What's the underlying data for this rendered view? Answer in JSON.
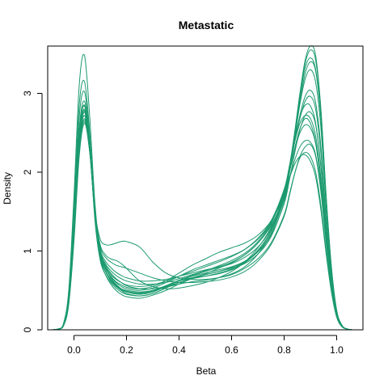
{
  "chart_data": {
    "type": "line",
    "title": "Metastatic",
    "xlabel": "Beta",
    "ylabel": "Density",
    "xlim": [
      -0.1,
      1.1
    ],
    "ylim": [
      0,
      3.6
    ],
    "xticks": [
      {
        "value": 0.0,
        "label": "0.0"
      },
      {
        "value": 0.2,
        "label": "0.2"
      },
      {
        "value": 0.4,
        "label": "0.4"
      },
      {
        "value": 0.6,
        "label": "0.6"
      },
      {
        "value": 0.8,
        "label": "0.8"
      },
      {
        "value": 1.0,
        "label": "1.0"
      }
    ],
    "yticks": [
      {
        "value": 0,
        "label": "0"
      },
      {
        "value": 1,
        "label": "1"
      },
      {
        "value": 2,
        "label": "2"
      },
      {
        "value": 3,
        "label": "3"
      }
    ],
    "line_color": "#1b9a6e",
    "baseline_color": "#b0b0b0",
    "grid": false,
    "x": [
      -0.08,
      -0.06,
      -0.04,
      -0.02,
      0.0,
      0.02,
      0.04,
      0.06,
      0.08,
      0.1,
      0.12,
      0.14,
      0.16,
      0.18,
      0.2,
      0.25,
      0.3,
      0.35,
      0.4,
      0.45,
      0.5,
      0.55,
      0.6,
      0.65,
      0.7,
      0.75,
      0.8,
      0.82,
      0.84,
      0.86,
      0.88,
      0.9,
      0.92,
      0.94,
      0.96,
      0.98,
      1.0,
      1.02,
      1.04,
      1.06
    ],
    "series": [
      {
        "values": [
          0.0,
          0.01,
          0.08,
          0.5,
          1.7,
          3.1,
          3.48,
          2.7,
          1.6,
          1.0,
          0.8,
          0.66,
          0.58,
          0.52,
          0.48,
          0.45,
          0.48,
          0.55,
          0.62,
          0.66,
          0.68,
          0.71,
          0.76,
          0.85,
          1.0,
          1.25,
          1.7,
          2.05,
          2.5,
          3.0,
          3.42,
          3.6,
          3.48,
          2.8,
          1.7,
          0.8,
          0.25,
          0.06,
          0.01,
          0.0
        ]
      },
      {
        "values": [
          0.0,
          0.01,
          0.07,
          0.45,
          1.55,
          2.85,
          3.15,
          2.5,
          1.5,
          0.95,
          0.75,
          0.62,
          0.55,
          0.5,
          0.46,
          0.43,
          0.46,
          0.53,
          0.6,
          0.65,
          0.68,
          0.72,
          0.77,
          0.86,
          1.01,
          1.26,
          1.71,
          2.06,
          2.5,
          2.98,
          3.38,
          3.55,
          3.42,
          2.78,
          1.68,
          0.78,
          0.24,
          0.05,
          0.01,
          0.0
        ]
      },
      {
        "values": [
          0.0,
          0.01,
          0.07,
          0.42,
          1.45,
          2.7,
          3.02,
          2.42,
          1.46,
          0.93,
          0.74,
          0.62,
          0.56,
          0.52,
          0.5,
          0.48,
          0.5,
          0.54,
          0.58,
          0.61,
          0.63,
          0.66,
          0.71,
          0.8,
          0.96,
          1.22,
          1.68,
          2.02,
          2.45,
          2.9,
          3.25,
          3.4,
          3.28,
          2.68,
          1.62,
          0.76,
          0.23,
          0.05,
          0.01,
          0.0
        ]
      },
      {
        "values": [
          0.0,
          0.01,
          0.06,
          0.38,
          1.3,
          2.45,
          2.78,
          2.3,
          1.48,
          1.05,
          0.92,
          0.86,
          0.82,
          0.8,
          0.78,
          0.72,
          0.66,
          0.62,
          0.6,
          0.6,
          0.61,
          0.63,
          0.67,
          0.74,
          0.87,
          1.08,
          1.44,
          1.7,
          1.98,
          2.2,
          2.32,
          2.35,
          2.2,
          1.75,
          1.1,
          0.55,
          0.18,
          0.04,
          0.01,
          0.0
        ]
      },
      {
        "values": [
          0.0,
          0.01,
          0.06,
          0.36,
          1.24,
          2.35,
          2.72,
          2.28,
          1.45,
          0.98,
          0.82,
          0.72,
          0.65,
          0.6,
          0.56,
          0.52,
          0.52,
          0.55,
          0.6,
          0.66,
          0.71,
          0.78,
          0.85,
          0.95,
          1.1,
          1.32,
          1.68,
          1.92,
          2.15,
          2.32,
          2.4,
          2.38,
          2.22,
          1.78,
          1.15,
          0.58,
          0.2,
          0.05,
          0.01,
          0.0
        ]
      },
      {
        "values": [
          0.0,
          0.01,
          0.06,
          0.36,
          1.25,
          2.38,
          2.76,
          2.32,
          1.5,
          1.08,
          0.95,
          0.9,
          0.88,
          0.84,
          0.78,
          0.62,
          0.55,
          0.52,
          0.53,
          0.56,
          0.6,
          0.66,
          0.74,
          0.86,
          1.04,
          1.3,
          1.72,
          2.0,
          2.3,
          2.55,
          2.68,
          2.62,
          2.38,
          1.85,
          1.14,
          0.54,
          0.17,
          0.04,
          0.01,
          0.0
        ]
      },
      {
        "values": [
          0.0,
          0.01,
          0.05,
          0.32,
          1.12,
          2.2,
          2.62,
          2.25,
          1.5,
          1.15,
          1.08,
          1.08,
          1.1,
          1.12,
          1.12,
          1.05,
          0.86,
          0.72,
          0.66,
          0.64,
          0.64,
          0.66,
          0.7,
          0.78,
          0.9,
          1.1,
          1.46,
          1.72,
          1.98,
          2.18,
          2.25,
          2.2,
          2.0,
          1.58,
          1.0,
          0.5,
          0.17,
          0.04,
          0.01,
          0.0
        ]
      },
      {
        "values": [
          0.0,
          0.01,
          0.06,
          0.38,
          1.32,
          2.5,
          2.85,
          2.35,
          1.42,
          0.9,
          0.7,
          0.58,
          0.5,
          0.45,
          0.42,
          0.4,
          0.44,
          0.5,
          0.58,
          0.65,
          0.7,
          0.74,
          0.78,
          0.84,
          0.96,
          1.18,
          1.62,
          1.98,
          2.45,
          2.95,
          3.32,
          3.45,
          3.3,
          2.7,
          1.65,
          0.78,
          0.24,
          0.05,
          0.01,
          0.0
        ]
      },
      {
        "values": [
          0.0,
          0.01,
          0.05,
          0.34,
          1.18,
          2.28,
          2.66,
          2.26,
          1.44,
          0.96,
          0.78,
          0.68,
          0.61,
          0.57,
          0.54,
          0.52,
          0.55,
          0.62,
          0.72,
          0.82,
          0.9,
          0.98,
          1.04,
          1.1,
          1.2,
          1.38,
          1.7,
          1.92,
          2.1,
          2.2,
          2.22,
          2.14,
          1.94,
          1.52,
          0.96,
          0.48,
          0.16,
          0.04,
          0.01,
          0.0
        ]
      },
      {
        "values": [
          0.0,
          0.01,
          0.06,
          0.37,
          1.28,
          2.42,
          2.8,
          2.34,
          1.46,
          0.97,
          0.8,
          0.7,
          0.64,
          0.6,
          0.57,
          0.55,
          0.57,
          0.62,
          0.68,
          0.74,
          0.8,
          0.86,
          0.93,
          1.02,
          1.16,
          1.38,
          1.78,
          2.06,
          2.38,
          2.68,
          2.9,
          2.96,
          2.8,
          2.24,
          1.38,
          0.66,
          0.21,
          0.05,
          0.01,
          0.0
        ]
      },
      {
        "values": [
          0.0,
          0.01,
          0.06,
          0.36,
          1.26,
          2.4,
          2.78,
          2.3,
          1.42,
          0.92,
          0.74,
          0.63,
          0.56,
          0.51,
          0.48,
          0.46,
          0.49,
          0.55,
          0.62,
          0.68,
          0.72,
          0.76,
          0.8,
          0.87,
          0.99,
          1.2,
          1.6,
          1.9,
          2.24,
          2.54,
          2.72,
          2.76,
          2.6,
          2.08,
          1.28,
          0.62,
          0.2,
          0.05,
          0.01,
          0.0
        ]
      },
      {
        "values": [
          0.0,
          0.01,
          0.05,
          0.34,
          1.2,
          2.3,
          2.68,
          2.28,
          1.46,
          1.0,
          0.84,
          0.75,
          0.69,
          0.65,
          0.62,
          0.58,
          0.58,
          0.6,
          0.65,
          0.7,
          0.75,
          0.81,
          0.88,
          0.97,
          1.12,
          1.36,
          1.78,
          2.08,
          2.42,
          2.7,
          2.85,
          2.84,
          2.62,
          2.05,
          1.25,
          0.6,
          0.19,
          0.05,
          0.01,
          0.0
        ]
      },
      {
        "values": [
          0.0,
          0.01,
          0.06,
          0.4,
          1.36,
          2.55,
          2.9,
          2.36,
          1.38,
          0.88,
          0.7,
          0.6,
          0.53,
          0.48,
          0.45,
          0.43,
          0.46,
          0.53,
          0.6,
          0.66,
          0.7,
          0.74,
          0.79,
          0.86,
          0.99,
          1.22,
          1.66,
          2.0,
          2.42,
          2.86,
          3.18,
          3.3,
          3.14,
          2.56,
          1.56,
          0.74,
          0.23,
          0.05,
          0.01,
          0.0
        ]
      },
      {
        "values": [
          0.0,
          0.01,
          0.05,
          0.33,
          1.16,
          2.25,
          2.64,
          2.26,
          1.47,
          1.02,
          0.87,
          0.79,
          0.73,
          0.69,
          0.66,
          0.62,
          0.62,
          0.64,
          0.68,
          0.72,
          0.76,
          0.8,
          0.86,
          0.95,
          1.1,
          1.34,
          1.76,
          2.06,
          2.38,
          2.62,
          2.72,
          2.68,
          2.46,
          1.92,
          1.18,
          0.57,
          0.19,
          0.05,
          0.01,
          0.0
        ]
      },
      {
        "values": [
          0.0,
          0.01,
          0.06,
          0.38,
          1.3,
          2.48,
          2.84,
          2.34,
          1.43,
          0.93,
          0.75,
          0.64,
          0.57,
          0.52,
          0.49,
          0.47,
          0.5,
          0.56,
          0.63,
          0.69,
          0.74,
          0.79,
          0.84,
          0.92,
          1.05,
          1.28,
          1.7,
          2.02,
          2.38,
          2.72,
          2.96,
          3.04,
          2.88,
          2.32,
          1.42,
          0.68,
          0.22,
          0.05,
          0.01,
          0.0
        ]
      },
      {
        "values": [
          0.0,
          0.01,
          0.05,
          0.35,
          1.22,
          2.34,
          2.72,
          2.3,
          1.44,
          0.96,
          0.78,
          0.67,
          0.6,
          0.55,
          0.52,
          0.5,
          0.53,
          0.6,
          0.68,
          0.76,
          0.82,
          0.88,
          0.94,
          1.02,
          1.15,
          1.36,
          1.74,
          2.0,
          2.28,
          2.5,
          2.6,
          2.56,
          2.36,
          1.85,
          1.14,
          0.56,
          0.18,
          0.04,
          0.01,
          0.0
        ]
      }
    ]
  }
}
